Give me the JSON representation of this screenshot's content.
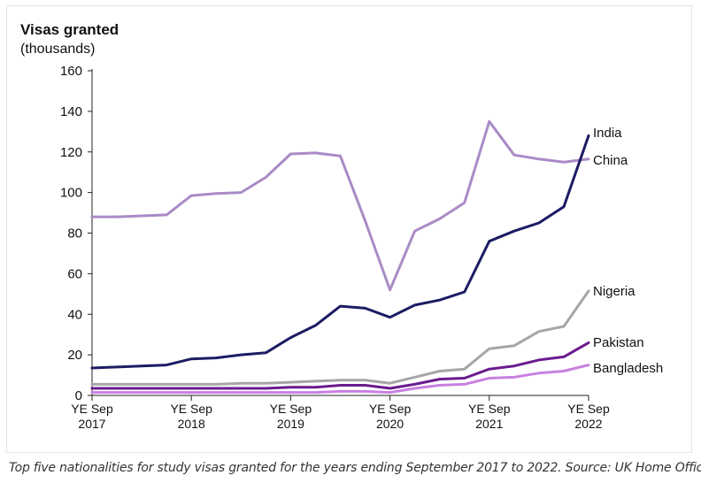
{
  "chart_data": {
    "type": "line",
    "title": "Visas granted",
    "subtitle": "(thousands)",
    "ylim": [
      0,
      160
    ],
    "yticks": [
      0,
      20,
      40,
      60,
      80,
      100,
      120,
      140,
      160
    ],
    "x_count": 21,
    "x_tick_positions": [
      0,
      4,
      8,
      12,
      16,
      20
    ],
    "x_tick_labels": [
      [
        "YE Sep",
        "2017"
      ],
      [
        "YE Sep",
        "2018"
      ],
      [
        "YE Sep",
        "2019"
      ],
      [
        "YE Sep",
        "2020"
      ],
      [
        "YE Sep",
        "2021"
      ],
      [
        "YE Sep",
        "2022"
      ]
    ],
    "series": [
      {
        "name": "China",
        "color": "#a98bc6",
        "values": [
          88,
          88,
          88.5,
          89,
          98.5,
          99.5,
          100,
          107.5,
          119,
          119.5,
          118,
          86,
          52,
          81,
          87,
          95,
          135,
          118.5,
          116.5,
          115,
          116.5
        ]
      },
      {
        "name": "India",
        "color": "#1c1c63",
        "values": [
          13.5,
          14,
          14.5,
          15,
          18,
          18.5,
          20,
          21,
          28.5,
          34.5,
          44,
          43,
          38.5,
          44.5,
          47,
          51,
          76,
          81,
          85,
          93,
          128
        ]
      },
      {
        "name": "Nigeria",
        "color": "#a6a6a6",
        "values": [
          5.5,
          5.5,
          5.5,
          5.5,
          5.5,
          5.5,
          6,
          6,
          6.5,
          7,
          7.5,
          7.5,
          6,
          9,
          12,
          13,
          23,
          24.5,
          31.5,
          34,
          51.5
        ]
      },
      {
        "name": "Pakistan",
        "color": "#6a1b8e",
        "values": [
          3.5,
          3.5,
          3.5,
          3.5,
          3.5,
          3.5,
          3.5,
          3.5,
          4,
          4,
          5,
          5,
          3.5,
          5.5,
          8,
          8.5,
          13,
          14.5,
          17.5,
          19,
          26
        ]
      },
      {
        "name": "Bangladesh",
        "color": "#c880e0",
        "values": [
          1.5,
          1.5,
          1.5,
          1.5,
          1.5,
          1.5,
          1.5,
          1.5,
          1.5,
          1.5,
          2,
          2,
          1.5,
          3.5,
          5,
          5.5,
          8.5,
          9,
          11,
          12,
          15
        ]
      }
    ]
  },
  "caption": "Top five nationalities for study visas granted for the years ending September 2017 to 2022. Source: UK Home Office"
}
